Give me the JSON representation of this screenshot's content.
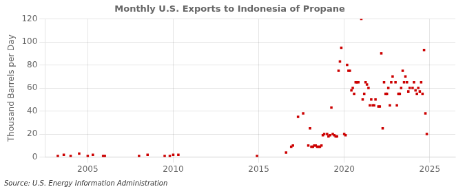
{
  "chart_data": {
    "type": "scatter",
    "title": "Monthly U.S. Exports to Indonesia of Propane",
    "ylabel": "Thousand Barrels per Day",
    "annotation": "Source: U.S. Energy Information Administration",
    "color": "#cc0000",
    "marker": "square",
    "grid": true,
    "xlim": [
      2002.5,
      2026.5
    ],
    "xticks": [
      2005,
      2010,
      2015,
      2020,
      2025
    ],
    "ylim": [
      0,
      120
    ],
    "yticks": [
      0,
      20,
      40,
      60,
      80,
      100,
      120
    ],
    "x": [
      2003.25,
      2003.6,
      2004.0,
      2004.5,
      2005.0,
      2005.3,
      2005.9,
      2006.0,
      2008.0,
      2008.5,
      2009.5,
      2009.8,
      2010.0,
      2010.3,
      2014.9,
      2016.6,
      2016.9,
      2017.0,
      2017.3,
      2017.6,
      2017.9,
      2018.0,
      2018.08,
      2018.17,
      2018.25,
      2018.33,
      2018.42,
      2018.5,
      2018.58,
      2018.67,
      2018.75,
      2018.83,
      2019.0,
      2019.08,
      2019.17,
      2019.25,
      2019.33,
      2019.42,
      2019.5,
      2019.58,
      2019.67,
      2019.75,
      2019.83,
      2020.0,
      2020.08,
      2020.17,
      2020.25,
      2020.33,
      2020.42,
      2020.5,
      2020.58,
      2020.67,
      2020.75,
      2020.83,
      2021.0,
      2021.08,
      2021.17,
      2021.25,
      2021.33,
      2021.42,
      2021.5,
      2021.58,
      2021.67,
      2021.75,
      2021.83,
      2022.0,
      2022.08,
      2022.17,
      2022.25,
      2022.33,
      2022.42,
      2022.5,
      2022.58,
      2022.67,
      2022.75,
      2022.83,
      2023.0,
      2023.08,
      2023.17,
      2023.25,
      2023.33,
      2023.42,
      2023.5,
      2023.58,
      2023.67,
      2023.75,
      2023.83,
      2024.0,
      2024.08,
      2024.17,
      2024.25,
      2024.33,
      2024.42,
      2024.5,
      2024.58,
      2024.67,
      2024.75,
      2024.83
    ],
    "values": [
      1,
      2,
      1,
      3,
      1,
      2,
      1,
      1,
      1,
      2,
      1,
      1,
      2,
      2,
      1,
      4,
      9,
      10,
      35,
      38,
      10,
      25,
      9,
      9,
      10,
      10,
      9,
      9,
      9,
      10,
      19,
      20,
      20,
      18,
      19,
      43,
      20,
      19,
      18,
      18,
      75,
      83,
      95,
      20,
      19,
      80,
      75,
      75,
      58,
      60,
      55,
      65,
      65,
      65,
      120,
      50,
      55,
      65,
      63,
      60,
      45,
      50,
      45,
      45,
      50,
      44,
      44,
      90,
      25,
      65,
      55,
      55,
      60,
      45,
      65,
      70,
      65,
      45,
      55,
      55,
      60,
      75,
      65,
      70,
      65,
      57,
      60,
      60,
      65,
      58,
      55,
      60,
      57,
      65,
      55,
      93,
      38,
      20
    ]
  }
}
